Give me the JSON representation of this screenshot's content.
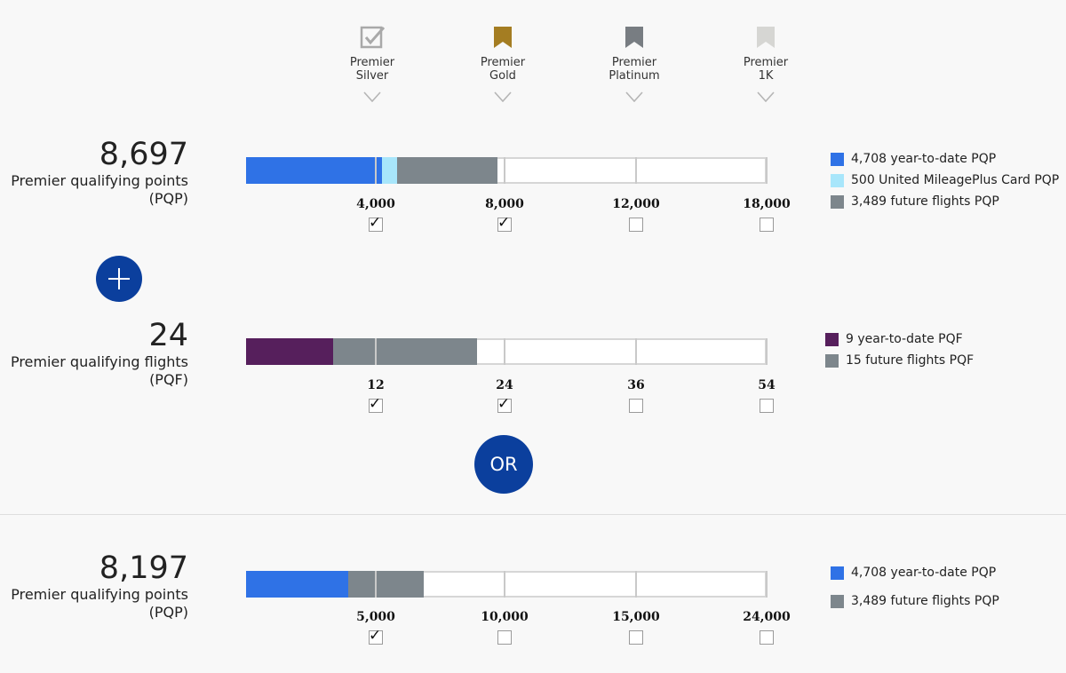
{
  "tiers": [
    {
      "name": "Premier\nSilver",
      "icon": "silver-check-icon"
    },
    {
      "name": "Premier\nGold",
      "icon": "gold-bookmark-icon"
    },
    {
      "name": "Premier\nPlatinum",
      "icon": "platinum-bookmark-icon"
    },
    {
      "name": "Premier\n1K",
      "icon": "1k-bookmark-icon"
    }
  ],
  "pqp_section": {
    "value": "8,697",
    "label_line1": "Premier qualifying points",
    "label_line2": "(PQP)",
    "max": 18000,
    "segments": [
      {
        "value": 4708,
        "color": "#2f72e6"
      },
      {
        "value": 500,
        "color": "#a8e6fb"
      },
      {
        "value": 3489,
        "color": "#7d868c"
      }
    ],
    "ticks": [
      "4,000",
      "8,000",
      "12,000",
      "18,000"
    ],
    "checked": [
      true,
      true,
      false,
      false
    ],
    "legend": [
      {
        "color": "#2f72e6",
        "text": "4,708 year-to-date PQP"
      },
      {
        "color": "#a8e6fb",
        "text": "500 United MileagePlus Card PQP"
      },
      {
        "color": "#7d868c",
        "text": "3,489 future flights PQP"
      }
    ]
  },
  "plus_icon": "plus-icon",
  "pqf_section": {
    "value": "24",
    "label_line1": "Premier qualifying flights",
    "label_line2": "(PQF)",
    "max": 54,
    "segments": [
      {
        "value": 9,
        "color": "#561f5c"
      },
      {
        "value": 15,
        "color": "#7d868c"
      }
    ],
    "ticks": [
      "12",
      "24",
      "36",
      "54"
    ],
    "checked": [
      true,
      true,
      false,
      false
    ],
    "legend": [
      {
        "color": "#561f5c",
        "text": "9 year-to-date PQF"
      },
      {
        "color": "#7d868c",
        "text": "15 future flights PQF"
      }
    ]
  },
  "or_label": "OR",
  "pqp_only_section": {
    "value": "8,197",
    "label_line1": "Premier qualifying points",
    "label_line2": "(PQP)",
    "max": 24000,
    "segments": [
      {
        "value": 4708,
        "color": "#2f72e6"
      },
      {
        "value": 3489,
        "color": "#7d868c"
      }
    ],
    "ticks": [
      "5,000",
      "10,000",
      "15,000",
      "24,000"
    ],
    "checked": [
      true,
      false,
      false,
      false
    ],
    "legend": [
      {
        "color": "#2f72e6",
        "text": "4,708 year-to-date PQP"
      },
      {
        "color": "#7d868c",
        "text": "3,489 future flights PQP"
      }
    ]
  },
  "colors": {
    "accent": "#0b3f9d",
    "gold": "#a47d22",
    "platinum": "#787d82",
    "onek": "#d6d6d3"
  }
}
